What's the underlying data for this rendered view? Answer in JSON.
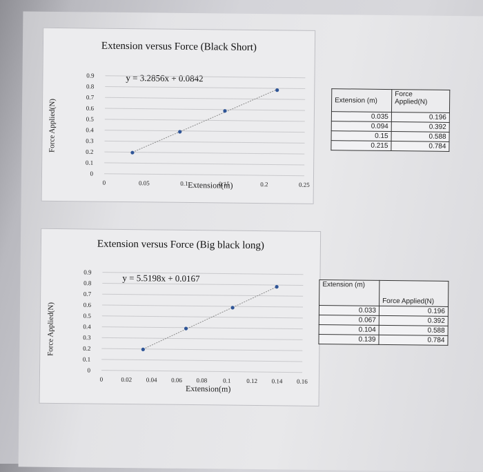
{
  "chart_data": [
    {
      "type": "scatter",
      "title": "Extension versus Force (Black Short)",
      "xlabel": "Extension(m)",
      "ylabel": "Force Applied(N)",
      "xlim": [
        0,
        0.25
      ],
      "ylim": [
        0,
        0.9
      ],
      "xticks": [
        "0",
        "0.05",
        "0.1",
        "0.15",
        "0.2",
        "0.25"
      ],
      "yticks": [
        "0",
        "0.1",
        "0.2",
        "0.3",
        "0.4",
        "0.5",
        "0.6",
        "0.7",
        "0.8",
        "0.9"
      ],
      "x": [
        0.035,
        0.094,
        0.15,
        0.215
      ],
      "y": [
        0.196,
        0.392,
        0.588,
        0.784
      ],
      "trendline": "linear",
      "equation": "y = 3.2856x + 0.0842",
      "grid": true
    },
    {
      "type": "scatter",
      "title": "Extension versus Force (Big black long)",
      "xlabel": "Extension(m)",
      "ylabel": "Force Applied(N)",
      "xlim": [
        0,
        0.16
      ],
      "ylim": [
        0,
        0.9
      ],
      "xticks": [
        "0",
        "0.02",
        "0.04",
        "0.06",
        "0.08",
        "0.1",
        "0.12",
        "0.14",
        "0.16"
      ],
      "yticks": [
        "0",
        "0.1",
        "0.2",
        "0.3",
        "0.4",
        "0.5",
        "0.6",
        "0.7",
        "0.8",
        "0.9"
      ],
      "x": [
        0.033,
        0.067,
        0.104,
        0.139
      ],
      "y": [
        0.196,
        0.392,
        0.588,
        0.784
      ],
      "trendline": "linear",
      "equation": "y = 5.5198x + 0.0167",
      "grid": true
    }
  ],
  "tables": [
    {
      "headers": [
        "Extension (m)",
        "Force Applied(N)"
      ],
      "rows": [
        [
          "0.035",
          "0.196"
        ],
        [
          "0.094",
          "0.392"
        ],
        [
          "0.15",
          "0.588"
        ],
        [
          "0.215",
          "0.784"
        ]
      ]
    },
    {
      "headers": [
        "Extension (m)",
        "Force Applied(N)"
      ],
      "rows": [
        [
          "0.033",
          "0.196"
        ],
        [
          "0.067",
          "0.392"
        ],
        [
          "0.104",
          "0.588"
        ],
        [
          "0.139",
          "0.784"
        ]
      ]
    }
  ],
  "colors": {
    "marker": "#2f5597",
    "trend": "#8a8a8a",
    "grid": "#c9c9cc"
  }
}
